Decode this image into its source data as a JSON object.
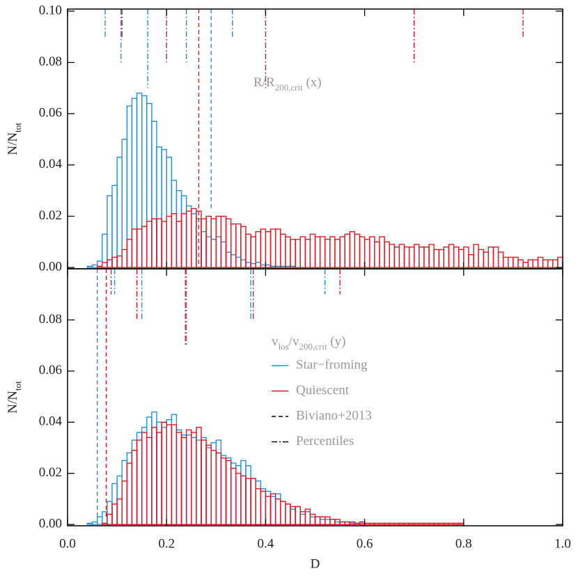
{
  "chart_data": [
    {
      "type": "histogram",
      "ylabel": [
        "N/N",
        "tot"
      ],
      "annotation": [
        "R/R",
        "200,crit",
        " (x)"
      ],
      "xlim": [
        0,
        1
      ],
      "ylim": [
        -0.0005,
        0.1008
      ],
      "xticks": [
        {
          "value": 0,
          "label": "0.0"
        },
        0.2,
        0.4,
        0.6,
        0.8,
        {
          "value": 1,
          "label": "1.0"
        }
      ],
      "yticks": [
        {
          "value": 0,
          "label": "0.00"
        },
        {
          "value": 0.02,
          "label": "0.02"
        },
        {
          "value": 0.04,
          "label": "0.04"
        },
        {
          "value": 0.06,
          "label": "0.06"
        },
        {
          "value": 0.08,
          "label": "0.08"
        },
        {
          "value": 0.1,
          "label": "0.10"
        }
      ],
      "series": [
        {
          "color": "#1f8fe6",
          "bins": [
            0.04,
            0.05,
            0.06,
            0.07,
            0.08,
            0.09,
            0.1,
            0.11,
            0.12,
            0.13,
            0.14,
            0.15,
            0.16,
            0.17,
            0.18,
            0.19,
            0.2,
            0.21,
            0.22,
            0.23,
            0.24,
            0.25,
            0.26,
            0.27,
            0.28,
            0.29,
            0.3,
            0.31,
            0.32,
            0.33,
            0.34,
            0.35,
            0.36,
            0.37,
            0.38,
            0.39,
            0.4,
            0.41,
            0.42,
            0.43,
            0.44,
            0.45,
            0.46
          ],
          "values": [
            0.0005,
            0.001,
            0.0025,
            0.013,
            0.028,
            0.032,
            0.043,
            0.05,
            0.063,
            0.066,
            0.068,
            0.067,
            0.064,
            0.057,
            0.047,
            0.046,
            0.043,
            0.034,
            0.03,
            0.028,
            0.024,
            0.021,
            0.019,
            0.014,
            0.012,
            0.011,
            0.012,
            0.01,
            0.006,
            0.005,
            0.004,
            0.003,
            0.002,
            0.0015,
            0.002,
            0.001,
            0.001,
            0.0005,
            0.0005,
            0.0005,
            0.0005,
            0.0005
          ]
        },
        {
          "color": "#e8141e",
          "bins": [
            0.06,
            0.07,
            0.08,
            0.09,
            0.1,
            0.11,
            0.12,
            0.13,
            0.14,
            0.15,
            0.16,
            0.17,
            0.18,
            0.19,
            0.2,
            0.21,
            0.22,
            0.23,
            0.24,
            0.25,
            0.26,
            0.27,
            0.28,
            0.29,
            0.3,
            0.31,
            0.32,
            0.33,
            0.34,
            0.35,
            0.36,
            0.37,
            0.38,
            0.39,
            0.4,
            0.41,
            0.42,
            0.43,
            0.44,
            0.45,
            0.46,
            0.47,
            0.48,
            0.49,
            0.5,
            0.51,
            0.52,
            0.53,
            0.54,
            0.55,
            0.56,
            0.57,
            0.58,
            0.59,
            0.6,
            0.61,
            0.62,
            0.63,
            0.64,
            0.65,
            0.66,
            0.67,
            0.68,
            0.69,
            0.7,
            0.71,
            0.72,
            0.73,
            0.74,
            0.75,
            0.76,
            0.77,
            0.78,
            0.79,
            0.8,
            0.81,
            0.82,
            0.83,
            0.84,
            0.85,
            0.86,
            0.87,
            0.88,
            0.89,
            0.9,
            0.91,
            0.92,
            0.93,
            0.94,
            0.95,
            0.96,
            0.97,
            0.98,
            0.99,
            1.0
          ],
          "values": [
            0.0005,
            0.002,
            0.003,
            0.004,
            0.0045,
            0.007,
            0.011,
            0.015,
            0.015,
            0.016,
            0.018,
            0.019,
            0.019,
            0.018,
            0.02,
            0.021,
            0.018,
            0.021,
            0.022,
            0.023,
            0.022,
            0.019,
            0.02,
            0.019,
            0.02,
            0.02,
            0.019,
            0.017,
            0.017,
            0.016,
            0.013,
            0.012,
            0.014,
            0.015,
            0.014,
            0.015,
            0.015,
            0.013,
            0.012,
            0.011,
            0.011,
            0.012,
            0.011,
            0.013,
            0.012,
            0.012,
            0.011,
            0.012,
            0.011,
            0.012,
            0.013,
            0.014,
            0.013,
            0.012,
            0.011,
            0.012,
            0.01,
            0.012,
            0.01,
            0.009,
            0.008,
            0.009,
            0.008,
            0.008,
            0.009,
            0.008,
            0.008,
            0.009,
            0.007,
            0.007,
            0.008,
            0.009,
            0.008,
            0.007,
            0.008,
            0.005,
            0.009,
            0.007,
            0.006,
            0.008,
            0.008,
            0.006,
            0.004,
            0.004,
            0.004,
            0.003,
            0.002,
            0.003,
            0.003,
            0.004,
            0.003,
            0.003,
            0.003,
            0.004
          ]
        }
      ],
      "lines": [
        {
          "style": "dashed",
          "marks": [
            {
              "color": "#1f8fe6",
              "x": 0.29,
              "end": 0.022
            },
            {
              "color": "#e8141e",
              "x": 0.265,
              "end": 0
            }
          ]
        },
        {
          "style": "dashdot",
          "marks": [
            {
              "color": "#1f8fe6",
              "x": 0.076,
              "end": 0.09
            },
            {
              "color": "#1f8fe6",
              "x": 0.108,
              "end": 0.08
            },
            {
              "color": "#1f8fe6",
              "x": 0.162,
              "end": 0.07
            },
            {
              "color": "#1f8fe6",
              "x": 0.24,
              "end": 0.08
            },
            {
              "color": "#1f8fe6",
              "x": 0.333,
              "end": 0.09
            },
            {
              "color": "#e8141e",
              "x": 0.11,
              "end": 0.09
            },
            {
              "color": "#e8141e",
              "x": 0.2,
              "end": 0.08
            },
            {
              "color": "#e8141e",
              "x": 0.4,
              "end": 0.07
            },
            {
              "color": "#e8141e",
              "x": 0.7,
              "end": 0.08
            },
            {
              "color": "#e8141e",
              "x": 0.92,
              "end": 0.09
            }
          ]
        }
      ]
    },
    {
      "type": "histogram",
      "xlabel": "D",
      "ylabel": [
        "N/N",
        "tot"
      ],
      "annotation": [
        "v",
        "los",
        "/v",
        "200,crit",
        " (y)"
      ],
      "legend": "center",
      "xlim": [
        0,
        1
      ],
      "ylim": [
        -0.0005,
        0.1
      ],
      "xticks": [
        {
          "value": 0,
          "label": "0.0"
        },
        0.2,
        0.4,
        0.6,
        0.8,
        {
          "value": 1,
          "label": "1.0"
        }
      ],
      "yticks": [
        {
          "value": 0,
          "label": "0.00"
        },
        {
          "value": 0.02,
          "label": "0.02"
        },
        {
          "value": 0.04,
          "label": "0.04"
        },
        {
          "value": 0.06,
          "label": "0.06"
        },
        {
          "value": 0.08,
          "label": "0.08"
        }
      ],
      "series": [
        {
          "name": "Star−froming",
          "color": "#1f8fe6",
          "bins": [
            0.04,
            0.05,
            0.06,
            0.07,
            0.08,
            0.09,
            0.1,
            0.11,
            0.12,
            0.13,
            0.14,
            0.15,
            0.16,
            0.17,
            0.18,
            0.19,
            0.2,
            0.21,
            0.22,
            0.23,
            0.24,
            0.25,
            0.26,
            0.27,
            0.28,
            0.29,
            0.3,
            0.31,
            0.32,
            0.33,
            0.34,
            0.35,
            0.36,
            0.37,
            0.38,
            0.39,
            0.4,
            0.41,
            0.42,
            0.43,
            0.44,
            0.45,
            0.46,
            0.47,
            0.48,
            0.49,
            0.5,
            0.51,
            0.52,
            0.53,
            0.54,
            0.55,
            0.56,
            0.57,
            0.58,
            0.59,
            0.6
          ],
          "values": [
            0.0005,
            0.001,
            0.003,
            0.005,
            0.009,
            0.016,
            0.019,
            0.025,
            0.028,
            0.033,
            0.036,
            0.038,
            0.042,
            0.044,
            0.04,
            0.038,
            0.041,
            0.043,
            0.037,
            0.035,
            0.035,
            0.034,
            0.033,
            0.034,
            0.03,
            0.032,
            0.033,
            0.027,
            0.026,
            0.024,
            0.023,
            0.025,
            0.023,
            0.018,
            0.017,
            0.014,
            0.013,
            0.011,
            0.012,
            0.009,
            0.008,
            0.006,
            0.007,
            0.004,
            0.005,
            0.003,
            0.003,
            0.002,
            0.002,
            0.002,
            0.001,
            0.001,
            0.001,
            0.0005,
            0.0005,
            0.0005
          ]
        },
        {
          "name": "Quiescent",
          "color": "#e8141e",
          "bins": [
            0.07,
            0.08,
            0.09,
            0.1,
            0.11,
            0.12,
            0.13,
            0.14,
            0.15,
            0.16,
            0.17,
            0.18,
            0.19,
            0.2,
            0.21,
            0.22,
            0.23,
            0.24,
            0.25,
            0.26,
            0.27,
            0.28,
            0.29,
            0.3,
            0.31,
            0.32,
            0.33,
            0.34,
            0.35,
            0.36,
            0.37,
            0.38,
            0.39,
            0.4,
            0.41,
            0.42,
            0.43,
            0.44,
            0.45,
            0.46,
            0.47,
            0.48,
            0.49,
            0.5,
            0.51,
            0.52,
            0.53,
            0.54,
            0.55,
            0.56,
            0.57,
            0.58,
            0.59,
            0.6,
            0.61,
            0.62,
            0.63,
            0.64,
            0.65,
            0.66,
            0.67,
            0.68,
            0.69,
            0.7,
            0.71,
            0.72,
            0.73,
            0.74,
            0.75,
            0.76,
            0.77,
            0.78,
            0.79,
            0.8
          ],
          "values": [
            0.0005,
            0.004,
            0.008,
            0.01,
            0.017,
            0.024,
            0.029,
            0.033,
            0.036,
            0.034,
            0.038,
            0.036,
            0.04,
            0.039,
            0.039,
            0.036,
            0.034,
            0.037,
            0.036,
            0.038,
            0.033,
            0.031,
            0.029,
            0.028,
            0.026,
            0.025,
            0.022,
            0.02,
            0.019,
            0.018,
            0.018,
            0.014,
            0.013,
            0.011,
            0.012,
            0.01,
            0.009,
            0.008,
            0.007,
            0.007,
            0.005,
            0.006,
            0.004,
            0.003,
            0.003,
            0.003,
            0.002,
            0.002,
            0.001,
            0.001,
            0.001,
            0.0005,
            0.001,
            0.0005,
            0.0005,
            0.0005,
            0.0005,
            0.0005,
            0.0005,
            0.0005,
            0.0005,
            0.0005,
            0.0005,
            0.0005,
            0.0005,
            0.0005,
            0.0005,
            0.0005,
            0.0005,
            0.0005,
            0.0005,
            0.0005,
            0.0005
          ]
        }
      ],
      "lines": [
        {
          "name": "Biviano+2013",
          "style": "dashed",
          "color": "#000000",
          "marks": [
            {
              "color": "#1f8fe6",
              "x": 0.06,
              "end": 0
            },
            {
              "color": "#e8141e",
              "x": 0.078,
              "end": 0.002
            }
          ]
        },
        {
          "name": "Percentiles",
          "style": "dashdot",
          "color": "#000000",
          "marks": [
            {
              "color": "#1f8fe6",
              "x": 0.095,
              "end": 0.09
            },
            {
              "color": "#1f8fe6",
              "x": 0.15,
              "end": 0.08
            },
            {
              "color": "#1f8fe6",
              "x": 0.24,
              "end": 0.07
            },
            {
              "color": "#1f8fe6",
              "x": 0.37,
              "end": 0.08
            },
            {
              "color": "#1f8fe6",
              "x": 0.52,
              "end": 0.09
            },
            {
              "color": "#e8141e",
              "x": 0.088,
              "end": 0.09
            },
            {
              "color": "#e8141e",
              "x": 0.14,
              "end": 0.08
            },
            {
              "color": "#e8141e",
              "x": 0.238,
              "end": 0.07
            },
            {
              "color": "#e8141e",
              "x": 0.375,
              "end": 0.08
            },
            {
              "color": "#e8141e",
              "x": 0.55,
              "end": 0.09
            }
          ]
        }
      ]
    }
  ]
}
